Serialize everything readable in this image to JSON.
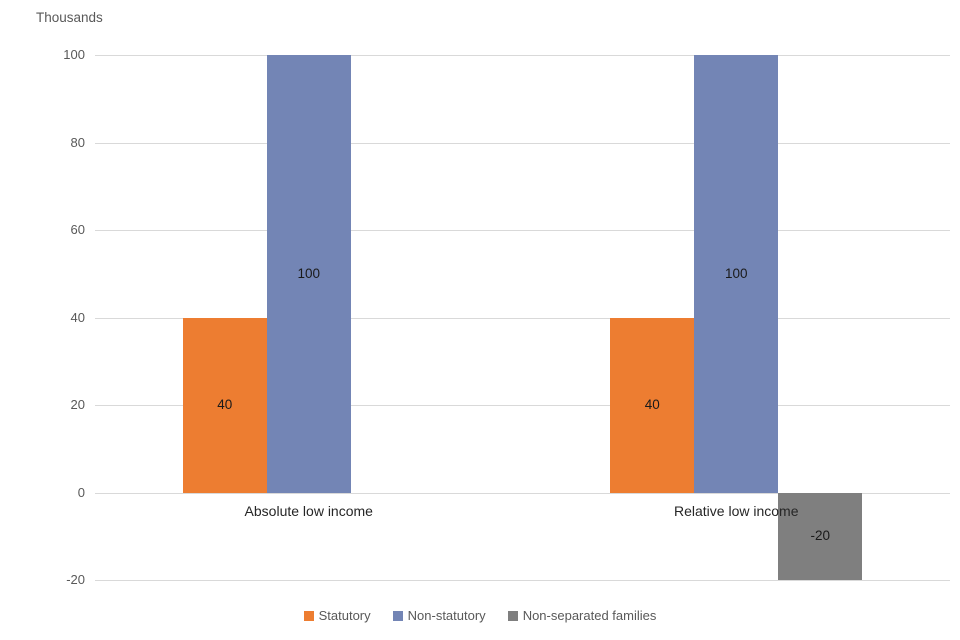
{
  "chart_data": {
    "type": "bar",
    "title": "",
    "axis_title": "Thousands",
    "categories": [
      "Absolute low income",
      "Relative low income"
    ],
    "series": [
      {
        "name": "Statutory",
        "color": "#ED7D31",
        "values": [
          40,
          40
        ]
      },
      {
        "name": "Non-statutory",
        "color": "#7385B5",
        "values": [
          100,
          100
        ]
      },
      {
        "name": "Non-separated families",
        "color": "#7F7F7F",
        "values": [
          0,
          -20
        ]
      }
    ],
    "ylim": [
      -20,
      100
    ],
    "ytick_step": 20,
    "yticks": [
      -20,
      0,
      20,
      40,
      60,
      80,
      100
    ],
    "grid": true,
    "legend_position": "bottom",
    "data_labels": true,
    "data_labels_shown": [
      "40",
      "100",
      "40",
      "100",
      "-20"
    ]
  },
  "colors": {
    "grid": "#D9D9D9",
    "axis_text": "#595959",
    "category_text": "#262626",
    "data_label_text": "#1a1a1a",
    "background": "#FFFFFF"
  }
}
